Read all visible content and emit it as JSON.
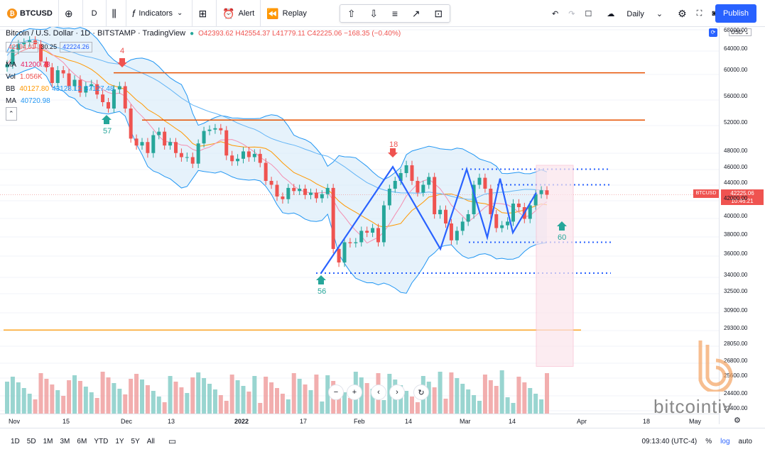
{
  "topbar": {
    "symbol": "BTCUSD",
    "symbol_icon": "bitcoin-icon",
    "add_symbol_icon": "plus-circle-icon",
    "interval": "D",
    "chart_type_icon": "candles-icon",
    "indicators_label": "Indicators",
    "alert_label": "Alert",
    "replay_label": "Replay",
    "timeframe_label": "Daily",
    "publish_label": "Publish"
  },
  "legend": {
    "title": "Bitcoin / U.S. Dollar · 1D · BITSTAMP · TradingView",
    "ohlc": "O42393.62 H42554.37 L41779.11 C42225.06 −168.35 (−0.40%)",
    "bid": "42194.01",
    "spread": "30.25",
    "ask": "42224.26",
    "ma_name": "MA",
    "ma_value": "41200.78",
    "vol_name": "Vol",
    "vol_value": "1.056K",
    "bb_name": "BB",
    "bb_basis": "40127.80",
    "bb_upper": "43128.12",
    "bb_lower": "37127.48",
    "ma2_name": "MA",
    "ma2_value": "40720.98"
  },
  "price_axis": {
    "currency": "USD",
    "labels": [
      "68000.00",
      "64000.00",
      "60000.00",
      "56000.00",
      "52000.00",
      "48000.00",
      "46000.00",
      "44000.00",
      "42000.00",
      "40000.00",
      "38000.00",
      "36000.00",
      "34000.00",
      "32500.00",
      "30900.00",
      "29300.00",
      "28050.00",
      "26800.00",
      "25600.00",
      "24400.00",
      "23400.00"
    ],
    "last_price": "42225.06",
    "countdown": "10:46:21",
    "ticker_tag": "BTCUSD"
  },
  "time_axis": {
    "labels": [
      "Nov",
      "15",
      "Dec",
      "13",
      "2022",
      "17",
      "Feb",
      "14",
      "Mar",
      "14",
      "Apr",
      "18",
      "May"
    ]
  },
  "bottom": {
    "ranges": [
      "1D",
      "5D",
      "1M",
      "3M",
      "6M",
      "YTD",
      "1Y",
      "5Y",
      "All"
    ],
    "clock": "09:13:40 (UTC-4)",
    "pct": "%",
    "log": "log",
    "auto": "auto"
  },
  "annotations": {
    "c1": "4",
    "c2": "57",
    "c3": "18",
    "c4": "56",
    "c5": "60"
  },
  "watermark": "bitcointiv",
  "colors": {
    "up": "#26a69a",
    "down": "#ef5350",
    "bb_fill": "#d6e9f8",
    "accent": "#2962ff",
    "hline": "#e65100",
    "hline2": "#ffa726"
  },
  "chart_data": {
    "type": "candlestick",
    "title": "Bitcoin / U.S. Dollar · 1D · BITSTAMP",
    "ylim": [
      23000,
      69000
    ],
    "candles_close": [
      61000,
      63500,
      64500,
      64800,
      65200,
      64500,
      61500,
      60500,
      58000,
      60000,
      59500,
      57500,
      58500,
      56500,
      57500,
      57800,
      56200,
      55000,
      54000,
      57000,
      57500,
      54000,
      49500,
      48500,
      49000,
      47500,
      50000,
      50500,
      48500,
      49000,
      47500,
      47000,
      47000,
      46200,
      48800,
      50600,
      50800,
      51000,
      50700,
      47200,
      46500,
      46800,
      47700,
      47000,
      47400,
      46300,
      44000,
      43500,
      42000,
      41700,
      43100,
      42700,
      43000,
      42200,
      42500,
      41800,
      42300,
      43100,
      36300,
      35000,
      37000,
      36900,
      37000,
      38200,
      38000,
      38500,
      37000,
      41000,
      43000,
      44000,
      45000,
      46000,
      44000,
      42500,
      43500,
      44500,
      40000,
      40500,
      39000,
      37200,
      38200,
      39200,
      40000,
      43500,
      44400,
      43000,
      40000,
      38500,
      38800,
      39200,
      41200,
      40800,
      39500,
      41000,
      42300,
      42800,
      42225
    ],
    "hlines": [
      59600,
      52200
    ],
    "hline_yellow": 29000,
    "dotted_levels": [
      45500,
      43500,
      37000,
      34000
    ],
    "zigzag": [
      [
        34000,
        56
      ],
      [
        45800,
        18
      ],
      [
        36300,
        0
      ],
      [
        45500,
        0
      ],
      [
        37500,
        0
      ],
      [
        44300,
        0
      ],
      [
        38000,
        0
      ],
      [
        42500,
        0
      ]
    ]
  }
}
